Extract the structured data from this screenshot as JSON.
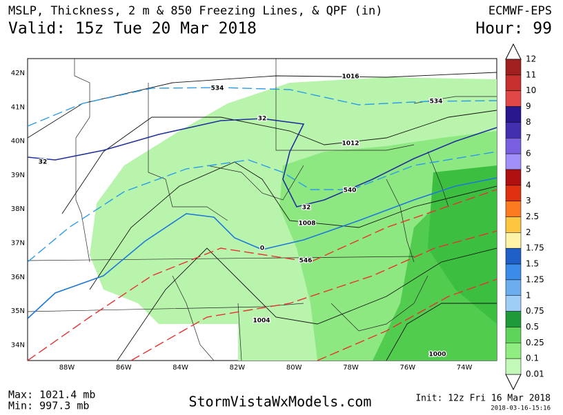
{
  "header": {
    "title": "MSLP, Thickness, 2 m & 850 Freezing Lines, & QPF (in)",
    "valid": "Valid: 15z Tue 20 Mar 2018",
    "model": "ECMWF-EPS",
    "hour": "Hour: 99"
  },
  "map": {
    "lat_labels": [
      "42N",
      "41N",
      "40N",
      "39N",
      "38N",
      "37N",
      "36N",
      "35N",
      "34N"
    ],
    "lon_labels": [
      "88W",
      "86W",
      "84W",
      "82W",
      "80W",
      "78W",
      "76W",
      "74W"
    ],
    "contour_labels": [
      "1016",
      "1012",
      "1008",
      "1004",
      "1000",
      "534",
      "534",
      "540",
      "546",
      "32",
      "32",
      "32",
      "0"
    ]
  },
  "legend": {
    "labels": [
      "12",
      "11",
      "10",
      "9",
      "8",
      "7",
      "6",
      "5",
      "4",
      "3",
      "2.5",
      "2",
      "1.75",
      "1.5",
      "1.25",
      "1",
      "0.75",
      "0.5",
      "0.25",
      "0.1",
      "0.01"
    ],
    "colors": [
      "#a02020",
      "#c83030",
      "#e04848",
      "#281890",
      "#4030b0",
      "#7a60e0",
      "#a090f8",
      "#b01010",
      "#e03010",
      "#fb7a20",
      "#fdc640",
      "#fff3a8",
      "#1e60c8",
      "#3a8ce8",
      "#6aaef0",
      "#9ecdf5",
      "#1f9a38",
      "#5ed45a",
      "#90ee80",
      "#c2f8b8"
    ]
  },
  "footer": {
    "max": "Max: 1021.4 mb",
    "min": "Min: 997.3 mb",
    "site": "StormVistaWxModels.com",
    "init": "Init: 12z Fri 16 Mar 2018",
    "stamp": "2018-03-16-15:16"
  }
}
